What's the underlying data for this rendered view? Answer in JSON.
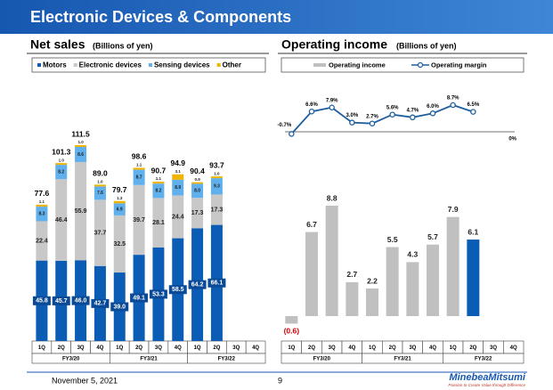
{
  "header": {
    "title": "Electronic Devices & Components"
  },
  "chart_data": [
    {
      "type": "stacked-bar",
      "title": "Net sales",
      "subtitle": "(Billions of yen)",
      "categories": [
        "1Q",
        "2Q",
        "3Q",
        "4Q",
        "1Q",
        "2Q",
        "3Q",
        "4Q",
        "1Q",
        "2Q",
        "3Q",
        "4Q"
      ],
      "groups": [
        "FY3/20",
        "FY3/21",
        "FY3/22"
      ],
      "series": [
        {
          "name": "Motors",
          "color": "#0b5cb5",
          "values": [
            45.8,
            45.7,
            46.0,
            42.7,
            39.0,
            49.1,
            53.3,
            58.5,
            64.2,
            66.1,
            null,
            null
          ],
          "value_labels": [
            "45.8",
            "45.7",
            "46.0",
            "42.7",
            "39.0",
            "49.1",
            "53.3",
            "58.5",
            "64.2",
            "66.1",
            null,
            null
          ]
        },
        {
          "name": "Electronic devices",
          "color": "#c8c8c8",
          "values": [
            22.4,
            46.4,
            55.9,
            37.7,
            32.5,
            39.7,
            28.1,
            24.4,
            17.3,
            17.3,
            null,
            null
          ],
          "value_labels": [
            "22.4",
            "46.4",
            "55.9",
            "37.7",
            "32.5",
            "39.7",
            "28.1",
            "24.4",
            "17.3",
            "17.3",
            null,
            null
          ]
        },
        {
          "name": "Sensing devices",
          "color": "#5fb0ec",
          "values": [
            8.3,
            8.2,
            8.6,
            7.6,
            6.9,
            8.7,
            8.2,
            8.9,
            8.0,
            9.3,
            null,
            null
          ],
          "value_labels": [
            "8.3",
            "8.2",
            "8.6",
            "7.6",
            "6.9",
            "8.7",
            "8.2",
            "8.9",
            "8.0",
            "9.3",
            null,
            null
          ]
        },
        {
          "name": "Other",
          "color": "#f0b400",
          "values": [
            1.1,
            1.0,
            1.0,
            1.0,
            1.3,
            1.1,
            1.1,
            3.1,
            0.9,
            1.0,
            null,
            null
          ],
          "value_labels": [
            "1.1",
            "1.0",
            "1.0",
            "1.0",
            "1.3",
            "1.1",
            "1.1",
            "3.1",
            "0.9",
            "1.0",
            null,
            null
          ]
        }
      ],
      "totals": [
        77.6,
        101.3,
        111.5,
        89.0,
        79.7,
        98.6,
        90.7,
        94.9,
        90.4,
        93.7,
        null,
        null
      ],
      "total_labels": [
        "77.6",
        "101.3",
        "111.5",
        "89.0",
        "79.7",
        "98.6",
        "90.7",
        "94.9",
        "90.4",
        "93.7",
        null,
        null
      ]
    },
    {
      "type": "bar-line",
      "title": "Operating income",
      "subtitle": "(Billions of yen)",
      "categories": [
        "1Q",
        "2Q",
        "3Q",
        "4Q",
        "1Q",
        "2Q",
        "3Q",
        "4Q",
        "1Q",
        "2Q",
        "3Q",
        "4Q"
      ],
      "groups": [
        "FY3/20",
        "FY3/21",
        "FY3/22"
      ],
      "series": [
        {
          "name": "Operating income",
          "color": "#c0c0c0",
          "colors": [
            "#c0c0c0",
            "#c0c0c0",
            "#c0c0c0",
            "#c0c0c0",
            "#c0c0c0",
            "#c0c0c0",
            "#c0c0c0",
            "#c0c0c0",
            "#c0c0c0",
            "#0b5cb5",
            null,
            null
          ],
          "values": [
            -0.6,
            6.7,
            8.8,
            2.7,
            2.2,
            5.5,
            4.3,
            5.7,
            7.9,
            6.1,
            null,
            null
          ],
          "value_labels": [
            "(0.6)",
            "6.7",
            "8.8",
            "2.7",
            "2.2",
            "5.5",
            "4.3",
            "5.7",
            "7.9",
            "6.1",
            null,
            null
          ]
        },
        {
          "name": "Operating margin",
          "color": "#1f5f9e",
          "axis": "y2",
          "values": [
            -0.7,
            6.6,
            7.9,
            3.0,
            2.7,
            5.6,
            4.7,
            6.0,
            8.7,
            6.5,
            null,
            null
          ],
          "value_labels": [
            "-0.7%",
            "6.6%",
            "7.9%",
            "3.0%",
            "2.7%",
            "5.6%",
            "4.7%",
            "6.0%",
            "8.7%",
            "6.5%",
            null,
            null
          ]
        }
      ],
      "y2ticks": [
        {
          "value": 0,
          "label": "0%"
        }
      ]
    }
  ],
  "footer": {
    "date": "November 5, 2021",
    "page": "9",
    "logo": "MinebeaMitsumi",
    "tagline": "Passion to Create Value through Difference"
  }
}
